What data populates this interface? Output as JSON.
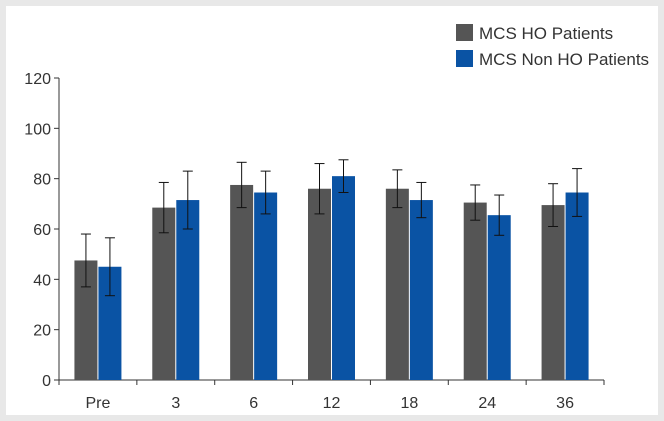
{
  "chart_data": {
    "type": "bar",
    "categories": [
      "Pre",
      "3",
      "6",
      "12",
      "18",
      "24",
      "36"
    ],
    "series": [
      {
        "name": "MCS HO Patients",
        "color": "#555555",
        "values": [
          47.5,
          68.5,
          77.5,
          76,
          76,
          70.5,
          69.5
        ],
        "error": [
          10.5,
          10,
          9,
          10,
          7.5,
          7,
          8.5
        ]
      },
      {
        "name": "MCS Non HO Patients",
        "color": "#0a53a4",
        "values": [
          45,
          71.5,
          74.5,
          81,
          71.5,
          65.5,
          74.5
        ],
        "error": [
          11.5,
          11.5,
          8.5,
          6.5,
          7,
          8,
          9.5
        ]
      }
    ],
    "yticks": [
      0,
      20,
      40,
      60,
      80,
      100,
      120
    ],
    "ylim": [
      0,
      120
    ],
    "title": "",
    "xlabel": "",
    "ylabel": "",
    "legend_position": "top-right",
    "error_bars": true
  }
}
